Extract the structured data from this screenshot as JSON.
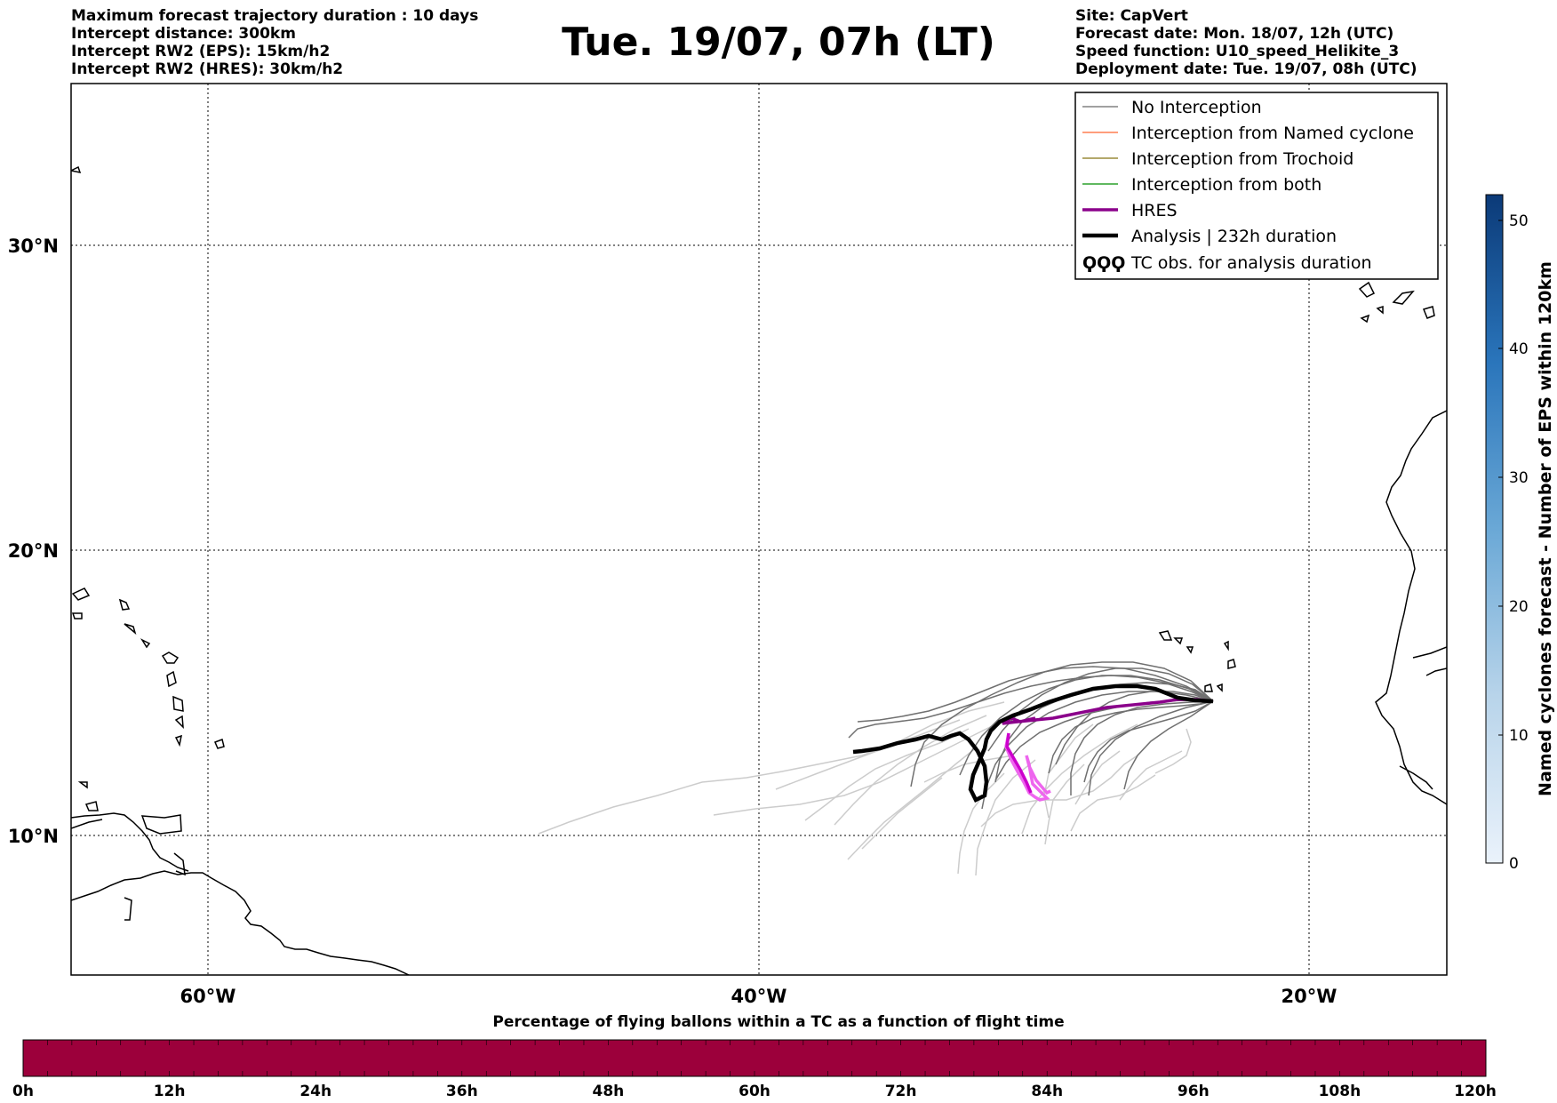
{
  "header": {
    "left": [
      "Maximum forecast trajectory duration : 10 days",
      "Intercept distance: 300km",
      "Intercept RW2 (EPS):  15km/h2",
      "Intercept RW2 (HRES): 30km/h2"
    ],
    "right": [
      "Site: CapVert",
      "Forecast date: Mon. 18/07, 12h (UTC)",
      "Speed function: U10_speed_Helikite_3",
      "Deployment date: Tue. 19/07, 08h (UTC)"
    ],
    "title": "Tue. 19/07, 07h (LT)"
  },
  "map": {
    "lat_labels": [
      "30°N",
      "20°N",
      "10°N"
    ],
    "lon_labels": [
      "60°W",
      "40°W",
      "20°W"
    ]
  },
  "legend": {
    "items": [
      {
        "label": "No Interception",
        "color": "#808080"
      },
      {
        "label": "Interception from Named cyclone",
        "color": "#ff7f50"
      },
      {
        "label": "Interception from Trochoid",
        "color": "#9a8b3a"
      },
      {
        "label": "Interception from both",
        "color": "#2ca02c"
      },
      {
        "label": "HRES",
        "color": "#8b008b"
      },
      {
        "label": "Analysis | 232h duration",
        "color": "#000000"
      },
      {
        "label": "TC obs. for analysis duration",
        "color": "#000000",
        "symbol": "ϘϘϘ"
      }
    ]
  },
  "colorbar": {
    "label": "Named cyclones forecast - Number of EPS within 120km",
    "ticks": [
      "0",
      "10",
      "20",
      "30",
      "40",
      "50"
    ],
    "colors": [
      "#e6eff8",
      "#1a4d8f"
    ]
  },
  "timeline": {
    "caption": "Percentage of flying ballons within a TC as a function of flight time",
    "ticks": [
      "0h",
      "12h",
      "24h",
      "36h",
      "48h",
      "60h",
      "72h",
      "84h",
      "96h",
      "108h",
      "120h"
    ],
    "fill_color": "#9c003b"
  }
}
